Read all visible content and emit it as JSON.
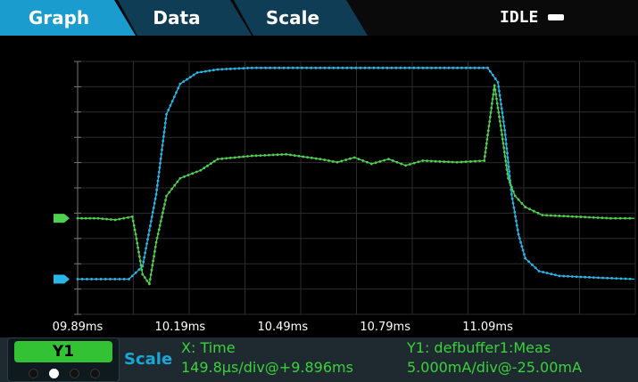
{
  "tabs": [
    {
      "label": "Graph",
      "active": true
    },
    {
      "label": "Data",
      "active": false
    },
    {
      "label": "Scale",
      "active": false
    }
  ],
  "status": {
    "text": "IDLE",
    "icon": "idle-indicator-icon"
  },
  "x_axis": {
    "ticks": [
      "09.89ms",
      "10.19ms",
      "10.49ms",
      "10.79ms",
      "11.09ms"
    ]
  },
  "footer": {
    "trace_label": "Y1",
    "scale_label": "Scale",
    "x_title": "X: Time",
    "x_scale": "149.8µs/div@+9.896ms",
    "y1_title": "Y1: defbuffer1:Meas",
    "y1_scale": "5.000mA/div@-25.00mA",
    "page_dots": 4,
    "active_dot": 1
  },
  "colors": {
    "tab_active": "#1a9ccf",
    "tab_inactive": "#0f3d55",
    "trace_blue": "#29b6e6",
    "trace_green": "#4fd14f",
    "accent_green": "#33c233"
  },
  "chart_data": {
    "type": "line",
    "x_unit": "ms",
    "series": [
      {
        "color": "#29b6e6",
        "x": [
          9.89,
          10.04,
          10.08,
          10.12,
          10.15,
          10.19,
          10.24,
          10.3,
          10.4,
          10.6,
          10.9,
          11.09,
          11.12,
          11.14,
          11.16,
          11.18,
          11.2,
          11.24,
          11.3,
          11.4,
          11.52
        ],
        "y": [
          -22.8,
          -22.8,
          -22.0,
          -17.5,
          -12.5,
          -10.6,
          -9.9,
          -9.7,
          -9.6,
          -9.6,
          -9.6,
          -9.6,
          -10.5,
          -13.5,
          -17.5,
          -20.0,
          -21.5,
          -22.3,
          -22.6,
          -22.7,
          -22.8
        ]
      },
      {
        "color": "#4fd14f",
        "x": [
          9.89,
          9.95,
          10.0,
          10.05,
          10.06,
          10.08,
          10.1,
          10.12,
          10.15,
          10.19,
          10.25,
          10.3,
          10.4,
          10.5,
          10.6,
          10.65,
          10.7,
          10.75,
          10.8,
          10.85,
          10.9,
          11.0,
          11.08,
          11.09,
          11.11,
          11.13,
          11.15,
          11.17,
          11.2,
          11.25,
          11.35,
          11.45,
          11.52
        ],
        "y": [
          -19.0,
          -19.0,
          -19.1,
          -18.9,
          -20.0,
          -22.5,
          -23.1,
          -20.5,
          -17.6,
          -16.5,
          -16.0,
          -15.3,
          -15.1,
          -15.0,
          -15.3,
          -15.5,
          -15.2,
          -15.6,
          -15.3,
          -15.7,
          -15.4,
          -15.5,
          -15.4,
          -13.8,
          -10.7,
          -13.5,
          -16.5,
          -17.6,
          -18.3,
          -18.8,
          -18.9,
          -19.0,
          -19.0
        ]
      }
    ],
    "xlim": [
      9.89,
      11.522
    ],
    "ylim": [
      -25.0,
      -9.2
    ],
    "grid": true
  }
}
